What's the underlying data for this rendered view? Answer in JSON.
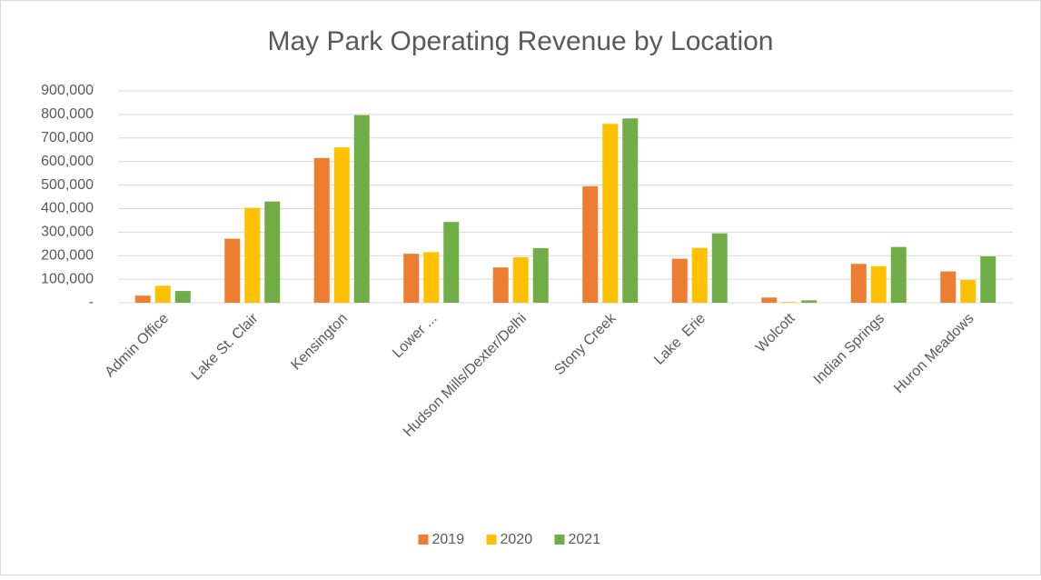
{
  "chart_data": {
    "type": "bar",
    "title": "May Park Operating Revenue by Location",
    "categories": [
      "Admin Office",
      "Lake St. Clair",
      "Kensington",
      "Lower ...",
      "Hudson Mills/Dexter/Delhi",
      "Stony Creek",
      "Lake  Erie",
      "Wolcott",
      "Indian Springs",
      "Huron Meadows"
    ],
    "series": [
      {
        "name": "2019",
        "color": "#ed7d31",
        "values": [
          30000,
          272000,
          615000,
          208000,
          150000,
          495000,
          187000,
          22000,
          165000,
          133000
        ]
      },
      {
        "name": "2020",
        "color": "#ffc000",
        "values": [
          72000,
          403000,
          660000,
          215000,
          193000,
          760000,
          233000,
          3000,
          155000,
          97000
        ]
      },
      {
        "name": "2021",
        "color": "#70ad47",
        "values": [
          50000,
          430000,
          797000,
          343000,
          232000,
          783000,
          295000,
          10000,
          237000,
          197000
        ]
      }
    ],
    "ylim": [
      0,
      900000
    ],
    "yticks": [
      {
        "value": 0,
        "label": "-"
      },
      {
        "value": 100000,
        "label": "100,000"
      },
      {
        "value": 200000,
        "label": "200,000"
      },
      {
        "value": 300000,
        "label": "300,000"
      },
      {
        "value": 400000,
        "label": "400,000"
      },
      {
        "value": 500000,
        "label": "500,000"
      },
      {
        "value": 600000,
        "label": "600,000"
      },
      {
        "value": 700000,
        "label": "700,000"
      },
      {
        "value": 800000,
        "label": "800,000"
      },
      {
        "value": 900000,
        "label": "900,000"
      }
    ],
    "grid": true,
    "legend": "bottom"
  }
}
